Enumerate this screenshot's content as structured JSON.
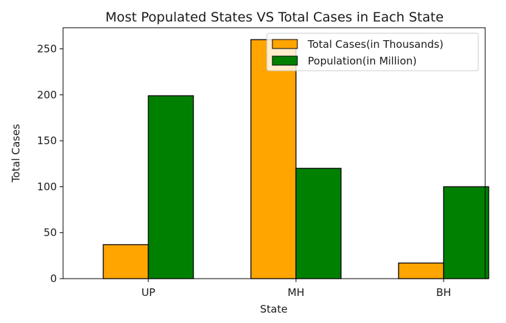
{
  "chart_data": {
    "type": "bar",
    "title": "Most Populated States VS Total Cases in Each State",
    "xlabel": "State",
    "ylabel": "Total Cases",
    "categories": [
      "UP",
      "MH",
      "BH"
    ],
    "series": [
      {
        "name": "Total Cases(in Thousands)",
        "color": "#ffa500",
        "values": [
          37,
          260,
          17
        ]
      },
      {
        "name": "Population(in Million)",
        "color": "#008000",
        "values": [
          199,
          120,
          100
        ]
      }
    ],
    "yticks": [
      0,
      50,
      100,
      150,
      200,
      250
    ],
    "ylim": [
      0,
      273
    ],
    "grid": false,
    "legend_position": "top-right"
  }
}
